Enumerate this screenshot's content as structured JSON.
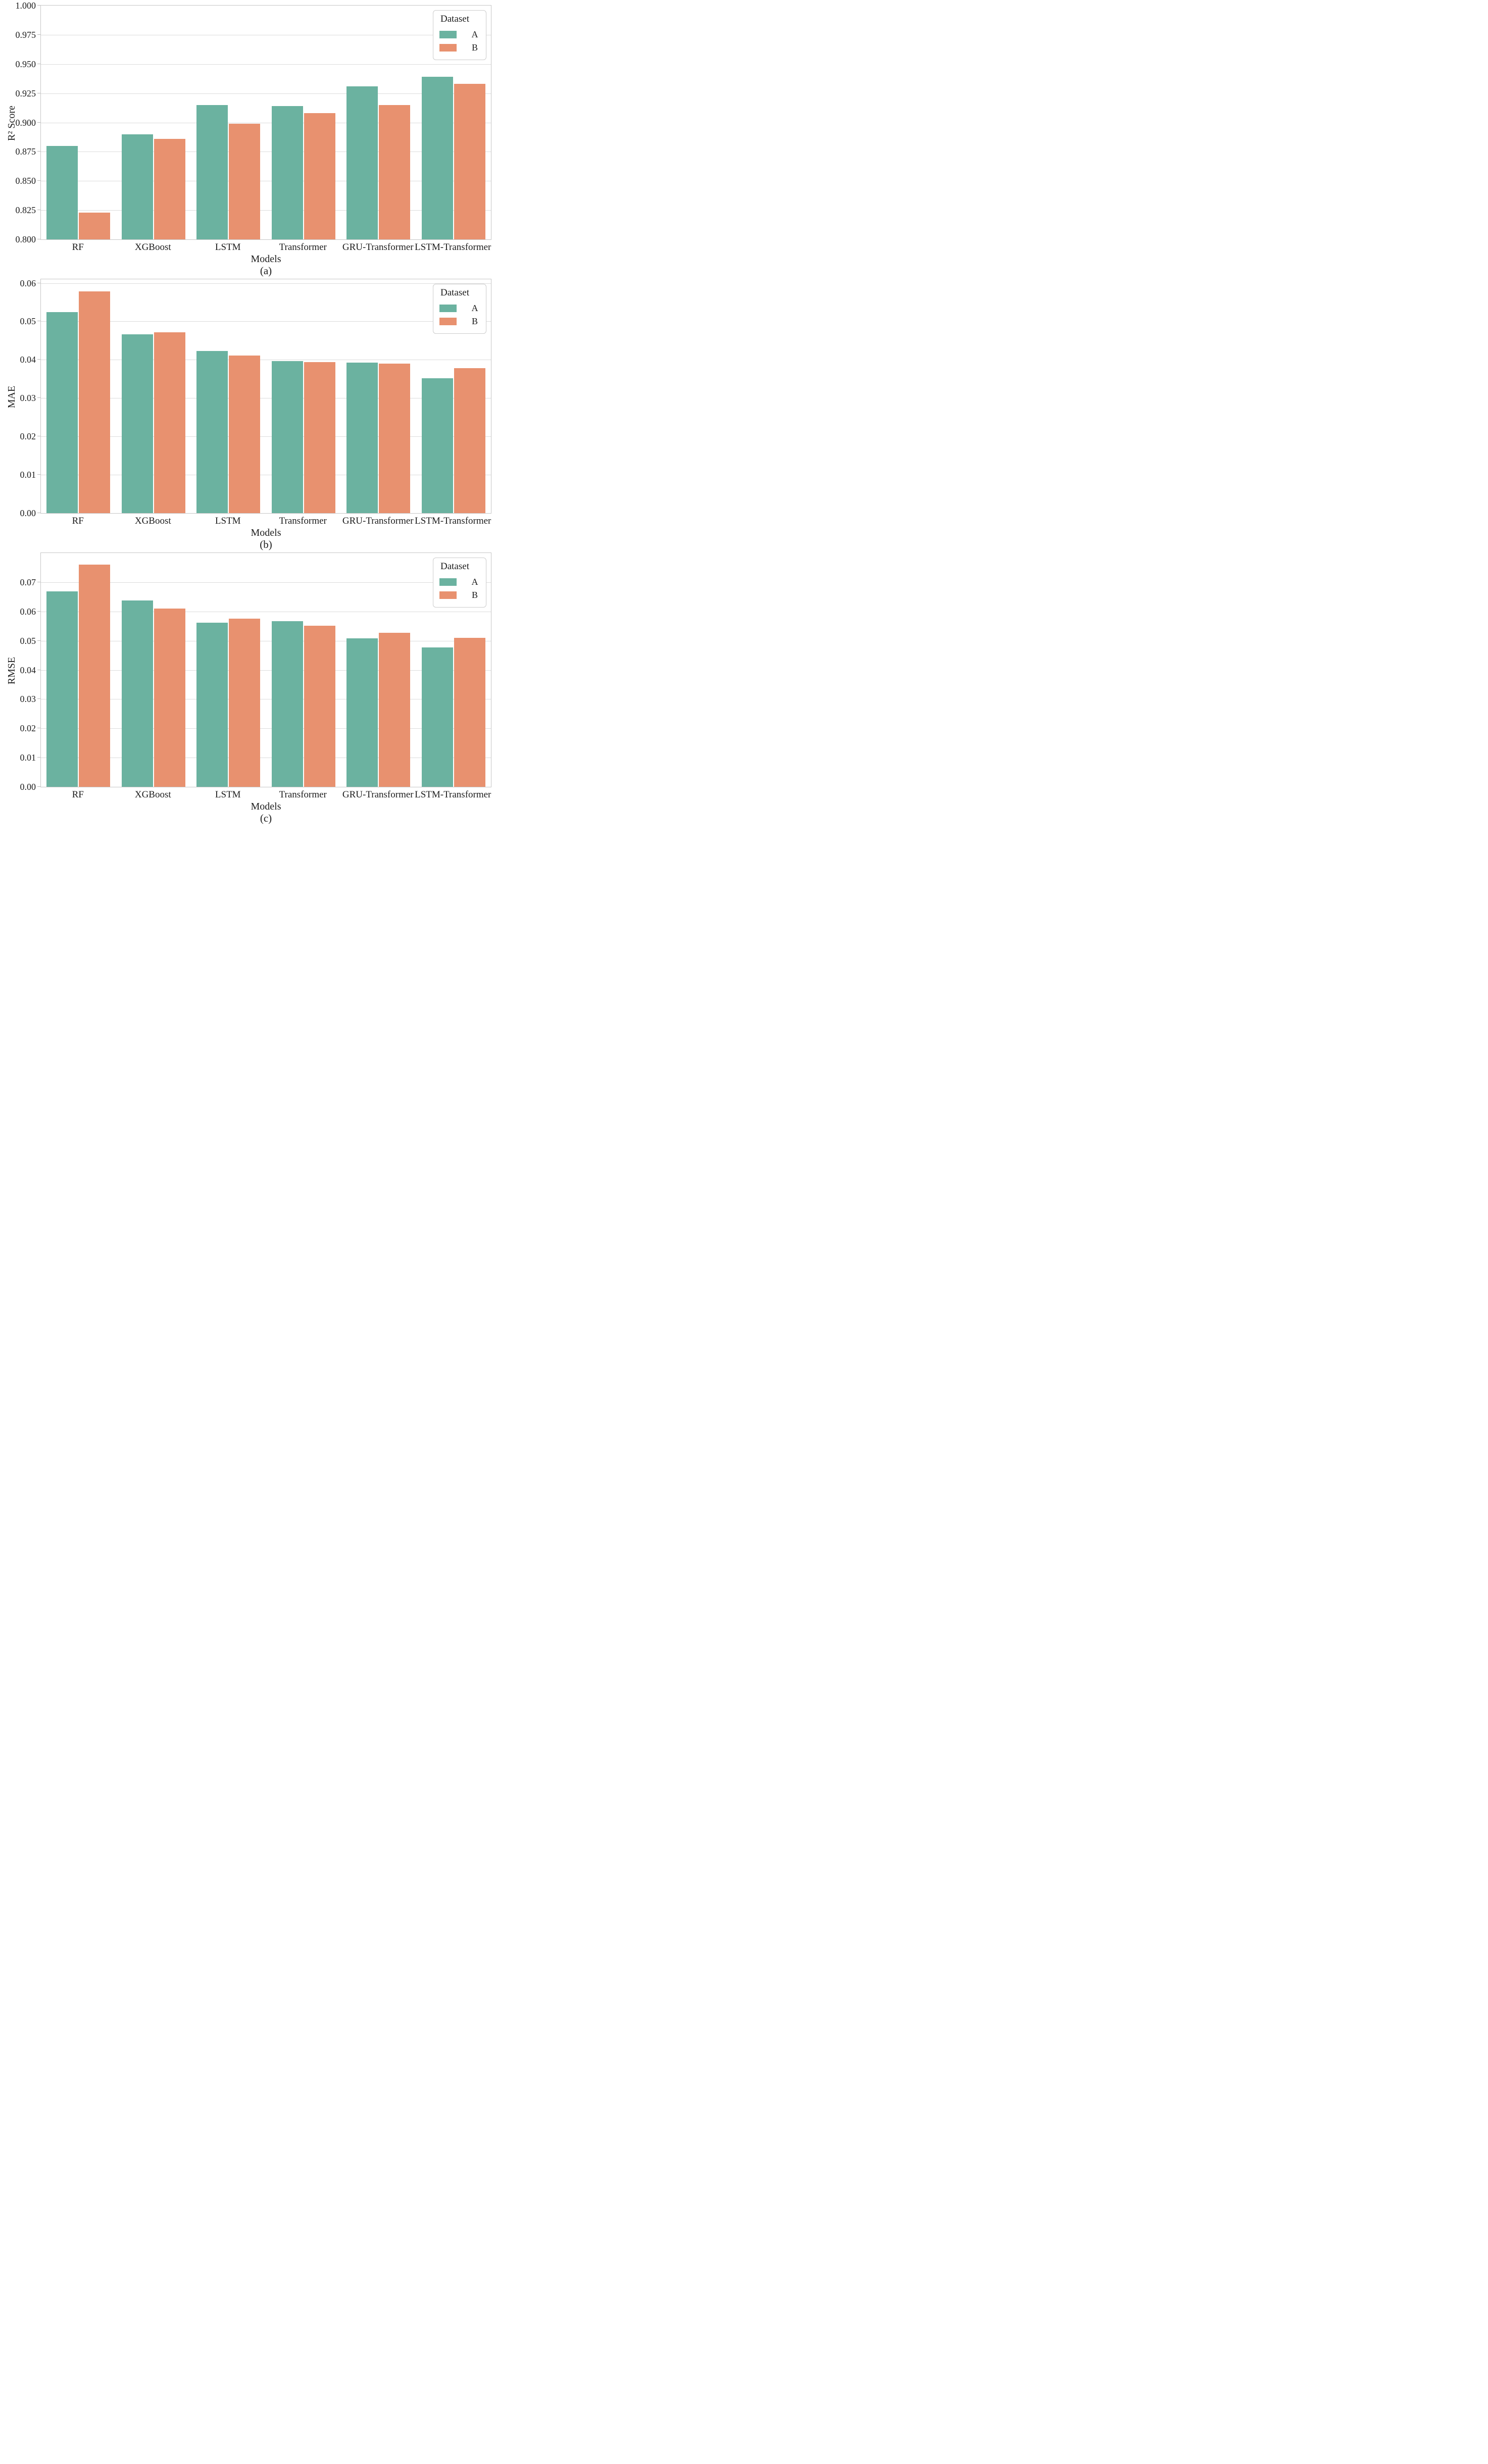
{
  "figure": {
    "background": "#ffffff",
    "text_color": "#1c1c1c",
    "gridline_color": "#dcdcdc",
    "spine_color": "#c6c6c6",
    "legend": {
      "title": "Dataset",
      "entries": [
        {
          "label": "A",
          "color": "#6bb2a0"
        },
        {
          "label": "B",
          "color": "#e8916f"
        }
      ],
      "position": "upper-right"
    }
  },
  "chart_data": [
    {
      "type": "bar",
      "caption": "(a)",
      "ylabel": "R² Score",
      "xlabel": "Models",
      "categories": [
        "RF",
        "XGBoost",
        "LSTM",
        "Transformer",
        "GRU-Transformer",
        "LSTM-Transformer"
      ],
      "series": [
        {
          "name": "A",
          "color": "#6bb2a0",
          "values": [
            0.88,
            0.89,
            0.915,
            0.914,
            0.931,
            0.939
          ]
        },
        {
          "name": "B",
          "color": "#e8916f",
          "values": [
            0.823,
            0.886,
            0.899,
            0.908,
            0.915,
            0.933
          ]
        }
      ],
      "ylim": [
        0.8,
        1.0
      ],
      "yticks": [
        0.8,
        0.825,
        0.85,
        0.875,
        0.9,
        0.925,
        0.95,
        0.975,
        1.0
      ],
      "ytick_decimals": 3,
      "grid": true,
      "legend_position": "upper right"
    },
    {
      "type": "bar",
      "caption": "(b)",
      "ylabel": "MAE",
      "xlabel": "Models",
      "categories": [
        "RF",
        "XGBoost",
        "LSTM",
        "Transformer",
        "GRU-Transformer",
        "LSTM-Transformer"
      ],
      "series": [
        {
          "name": "A",
          "color": "#6bb2a0",
          "values": [
            0.0525,
            0.0466,
            0.0423,
            0.0396,
            0.0392,
            0.0352
          ]
        },
        {
          "name": "B",
          "color": "#e8916f",
          "values": [
            0.0578,
            0.0472,
            0.0411,
            0.0394,
            0.039,
            0.0378
          ]
        }
      ],
      "ylim": [
        0.0,
        0.061
      ],
      "yticks": [
        0.0,
        0.01,
        0.02,
        0.03,
        0.04,
        0.05,
        0.06
      ],
      "ytick_decimals": 2,
      "grid": true,
      "legend_position": "upper right"
    },
    {
      "type": "bar",
      "caption": "(c)",
      "ylabel": "RMSE",
      "xlabel": "Models",
      "categories": [
        "RF",
        "XGBoost",
        "LSTM",
        "Transformer",
        "GRU-Transformer",
        "LSTM-Transformer"
      ],
      "series": [
        {
          "name": "A",
          "color": "#6bb2a0",
          "values": [
            0.0668,
            0.0637,
            0.0561,
            0.0566,
            0.0508,
            0.0477
          ]
        },
        {
          "name": "B",
          "color": "#e8916f",
          "values": [
            0.0761,
            0.061,
            0.0575,
            0.0551,
            0.0527,
            0.051
          ]
        }
      ],
      "ylim": [
        0.0,
        0.08
      ],
      "yticks": [
        0.0,
        0.01,
        0.02,
        0.03,
        0.04,
        0.05,
        0.06,
        0.07
      ],
      "ytick_decimals": 2,
      "grid": true,
      "legend_position": "upper right"
    }
  ]
}
